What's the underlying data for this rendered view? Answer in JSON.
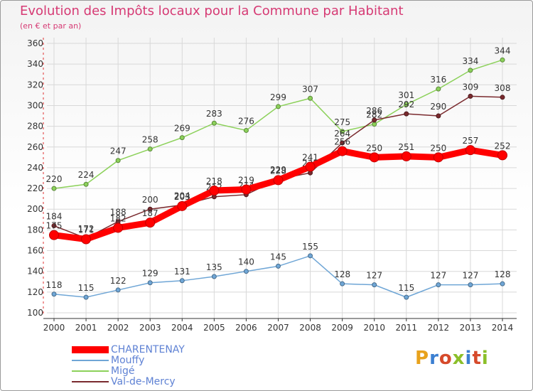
{
  "title": "Evolution des Impôts locaux pour la Commune par Habitant",
  "subtitle": "(en € et par an)",
  "logo_text": "Proxiti",
  "chart_data": {
    "type": "line",
    "title": "Evolution des Impôts locaux pour la Commune par Habitant",
    "subtitle": "(en € et par an)",
    "xlabel": "",
    "ylabel": "",
    "ylim": [
      100,
      360
    ],
    "y_ticks": [
      100,
      120,
      140,
      160,
      180,
      200,
      220,
      240,
      260,
      280,
      300,
      320,
      340,
      360
    ],
    "categories": [
      "2000",
      "2001",
      "2002",
      "2003",
      "2004",
      "2005",
      "2006",
      "2007",
      "2008",
      "2009",
      "2010",
      "2011",
      "2012",
      "2013",
      "2014"
    ],
    "grid": true,
    "legend_position": "bottom-left",
    "series": [
      {
        "name": "CHARENTENAY",
        "color": "#ff0000",
        "values": [
          175,
          171,
          182,
          187,
          203,
          218,
          219,
          228,
          241,
          256,
          250,
          251,
          250,
          257,
          252
        ]
      },
      {
        "name": "Mouffy",
        "color": "#6fa6d6",
        "values": [
          118,
          115,
          122,
          129,
          131,
          135,
          140,
          145,
          155,
          128,
          127,
          115,
          127,
          127,
          128
        ]
      },
      {
        "name": "Migé",
        "color": "#8cd15a",
        "values": [
          220,
          224,
          247,
          258,
          269,
          283,
          276,
          299,
          307,
          275,
          282,
          301,
          316,
          334,
          344
        ]
      },
      {
        "name": "Val-de-Mercy",
        "color": "#7a2a2e",
        "values": [
          184,
          172,
          188,
          200,
          204,
          212,
          214,
          229,
          235,
          264,
          286,
          292,
          290,
          309,
          308
        ]
      }
    ]
  }
}
